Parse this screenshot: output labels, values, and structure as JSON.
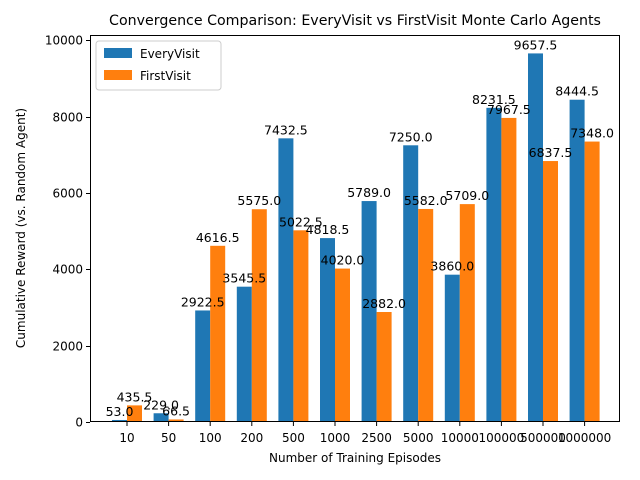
{
  "chart_data": {
    "type": "bar",
    "title": "Convergence Comparison: EveryVisit vs FirstVisit Monte Carlo Agents",
    "xlabel": "Number of Training Episodes",
    "ylabel": "Cumulative Reward (vs. Random Agent)",
    "categories": [
      "10",
      "50",
      "100",
      "200",
      "500",
      "1000",
      "2500",
      "5000",
      "10000",
      "100000",
      "500000",
      "1000000"
    ],
    "series": [
      {
        "name": "EveryVisit",
        "color": "#1f77b4",
        "values": [
          53.0,
          229.0,
          2922.5,
          3545.5,
          7432.5,
          4818.5,
          5789.0,
          7250.0,
          3860.0,
          8231.5,
          9657.5,
          8444.5
        ],
        "labels": [
          "53.0",
          "229.0",
          "2922.5",
          "3545.5",
          "7432.5",
          "4818.5",
          "5789.0",
          "7250.0",
          "3860.0",
          "8231.5",
          "9657.5",
          "8444.5"
        ]
      },
      {
        "name": "FirstVisit",
        "color": "#ff7f0e",
        "values": [
          435.5,
          66.5,
          4616.5,
          5575.0,
          5022.5,
          4020.0,
          2882.0,
          5582.0,
          5709.0,
          7967.5,
          6837.5,
          7348.0
        ],
        "labels": [
          "435.5",
          "66.5",
          "4616.5",
          "5575.0",
          "5022.5",
          "4020.0",
          "2882.0",
          "5582.0",
          "5709.0",
          "7967.5",
          "6837.5",
          "7348.0"
        ]
      }
    ],
    "ylim": [
      0,
      10140
    ],
    "yticks": [
      0,
      2000,
      4000,
      6000,
      8000,
      10000
    ],
    "ytick_labels": [
      "0",
      "2000",
      "4000",
      "6000",
      "8000",
      "10000"
    ],
    "grid": false,
    "legend_position": "top-left"
  }
}
